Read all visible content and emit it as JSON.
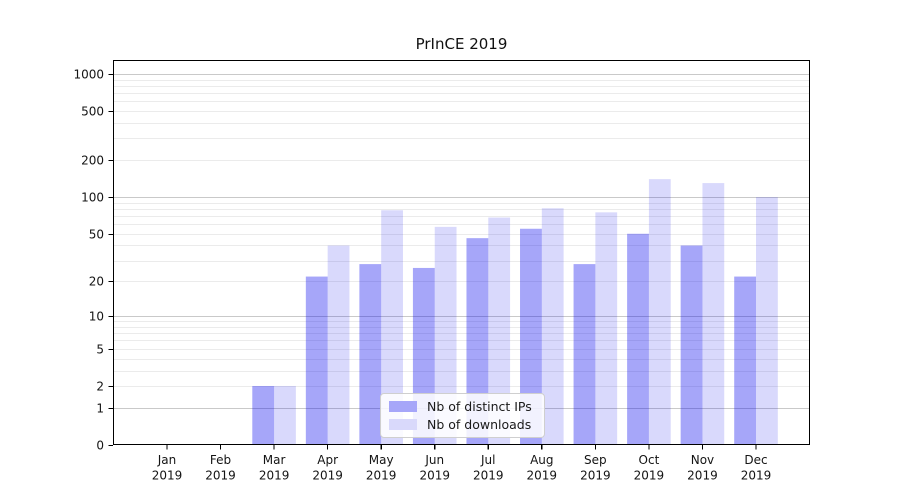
{
  "chart_data": {
    "type": "bar",
    "title": "PrInCE 2019",
    "categories": [
      "Jan",
      "Feb",
      "Mar",
      "Apr",
      "May",
      "Jun",
      "Jul",
      "Aug",
      "Sep",
      "Oct",
      "Nov",
      "Dec"
    ],
    "year": "2019",
    "series": [
      {
        "name": "Nb of distinct IPs",
        "color": "rgba(0,0,238,0.35)",
        "swatch": "#a6a6f9",
        "values": [
          0,
          0,
          2,
          22,
          28,
          26,
          46,
          55,
          28,
          50,
          40,
          22
        ]
      },
      {
        "name": "Nb of downloads",
        "color": "rgba(0,0,238,0.15)",
        "swatch": "#d9d9fb",
        "values": [
          0,
          0,
          2,
          40,
          78,
          57,
          68,
          81,
          75,
          140,
          130,
          100
        ]
      }
    ],
    "y_axis": {
      "scale": "log1p",
      "ticks": [
        0,
        1,
        2,
        5,
        10,
        20,
        50,
        100,
        200,
        500,
        1000
      ],
      "ylim": [
        0,
        1300
      ],
      "grid": true
    },
    "x_axis": {
      "label_format": "month-over-year"
    },
    "legend_position": "lower-center"
  }
}
